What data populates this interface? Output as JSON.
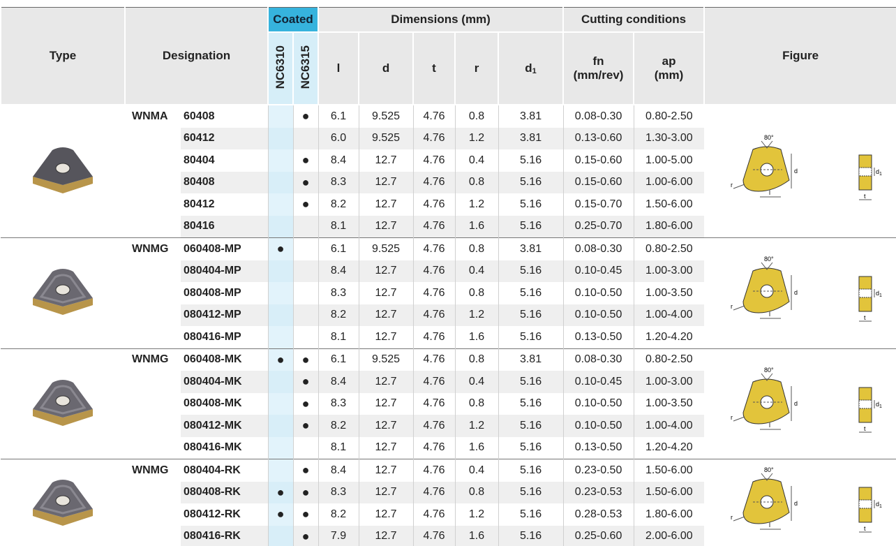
{
  "header": {
    "type": "Type",
    "designation": "Designation",
    "coated": "Coated",
    "grades": [
      "NC6310",
      "NC6315"
    ],
    "dimensions": "Dimensions (mm)",
    "dims": [
      "l",
      "d",
      "t",
      "r",
      {
        "main": "d",
        "sub": "1"
      }
    ],
    "cutting": "Cutting conditions",
    "conditions": [
      [
        "fn",
        "(mm/rev)"
      ],
      [
        "ap",
        "(mm)"
      ]
    ],
    "figure": "Figure"
  },
  "figure_labels": {
    "angle": "80°",
    "d": "d",
    "d1": {
      "main": "d",
      "sub": "1"
    },
    "r": "r",
    "l": "l",
    "t": "t"
  },
  "groups": [
    {
      "prefix": "WNMA",
      "rows": [
        [
          "60408",
          null,
          "●",
          "6.1",
          "9.525",
          "4.76",
          "0.8",
          "3.81",
          "0.08-0.30",
          "0.80-2.50"
        ],
        [
          "60412",
          null,
          null,
          "6.0",
          "9.525",
          "4.76",
          "1.2",
          "3.81",
          "0.13-0.60",
          "1.30-3.00"
        ],
        [
          "80404",
          null,
          "●",
          "8.4",
          "12.7",
          "4.76",
          "0.4",
          "5.16",
          "0.15-0.60",
          "1.00-5.00"
        ],
        [
          "80408",
          null,
          "●",
          "8.3",
          "12.7",
          "4.76",
          "0.8",
          "5.16",
          "0.15-0.60",
          "1.00-6.00"
        ],
        [
          "80412",
          null,
          "●",
          "8.2",
          "12.7",
          "4.76",
          "1.2",
          "5.16",
          "0.15-0.70",
          "1.50-6.00"
        ],
        [
          "80416",
          null,
          null,
          "8.1",
          "12.7",
          "4.76",
          "1.6",
          "5.16",
          "0.25-0.70",
          "1.80-6.00"
        ]
      ]
    },
    {
      "prefix": "WNMG",
      "rows": [
        [
          "060408-MP",
          "●",
          null,
          "6.1",
          "9.525",
          "4.76",
          "0.8",
          "3.81",
          "0.08-0.30",
          "0.80-2.50"
        ],
        [
          "080404-MP",
          null,
          null,
          "8.4",
          "12.7",
          "4.76",
          "0.4",
          "5.16",
          "0.10-0.45",
          "1.00-3.00"
        ],
        [
          "080408-MP",
          null,
          null,
          "8.3",
          "12.7",
          "4.76",
          "0.8",
          "5.16",
          "0.10-0.50",
          "1.00-3.50"
        ],
        [
          "080412-MP",
          null,
          null,
          "8.2",
          "12.7",
          "4.76",
          "1.2",
          "5.16",
          "0.10-0.50",
          "1.00-4.00"
        ],
        [
          "080416-MP",
          null,
          null,
          "8.1",
          "12.7",
          "4.76",
          "1.6",
          "5.16",
          "0.13-0.50",
          "1.20-4.20"
        ]
      ]
    },
    {
      "prefix": "WNMG",
      "rows": [
        [
          "060408-MK",
          "●",
          "●",
          "6.1",
          "9.525",
          "4.76",
          "0.8",
          "3.81",
          "0.08-0.30",
          "0.80-2.50"
        ],
        [
          "080404-MK",
          null,
          "●",
          "8.4",
          "12.7",
          "4.76",
          "0.4",
          "5.16",
          "0.10-0.45",
          "1.00-3.00"
        ],
        [
          "080408-MK",
          null,
          "●",
          "8.3",
          "12.7",
          "4.76",
          "0.8",
          "5.16",
          "0.10-0.50",
          "1.00-3.50"
        ],
        [
          "080412-MK",
          null,
          "●",
          "8.2",
          "12.7",
          "4.76",
          "1.2",
          "5.16",
          "0.10-0.50",
          "1.00-4.00"
        ],
        [
          "080416-MK",
          null,
          null,
          "8.1",
          "12.7",
          "4.76",
          "1.6",
          "5.16",
          "0.13-0.50",
          "1.20-4.20"
        ]
      ]
    },
    {
      "prefix": "WNMG",
      "rows": [
        [
          "080404-RK",
          null,
          "●",
          "8.4",
          "12.7",
          "4.76",
          "0.4",
          "5.16",
          "0.23-0.50",
          "1.50-6.00"
        ],
        [
          "080408-RK",
          "●",
          "●",
          "8.3",
          "12.7",
          "4.76",
          "0.8",
          "5.16",
          "0.23-0.53",
          "1.50-6.00"
        ],
        [
          "080412-RK",
          "●",
          "●",
          "8.2",
          "12.7",
          "4.76",
          "1.2",
          "5.16",
          "0.28-0.53",
          "1.80-6.00"
        ],
        [
          "080416-RK",
          null,
          "●",
          "7.9",
          "12.7",
          "4.76",
          "1.6",
          "5.16",
          "0.25-0.60",
          "2.00-6.00"
        ]
      ]
    }
  ]
}
